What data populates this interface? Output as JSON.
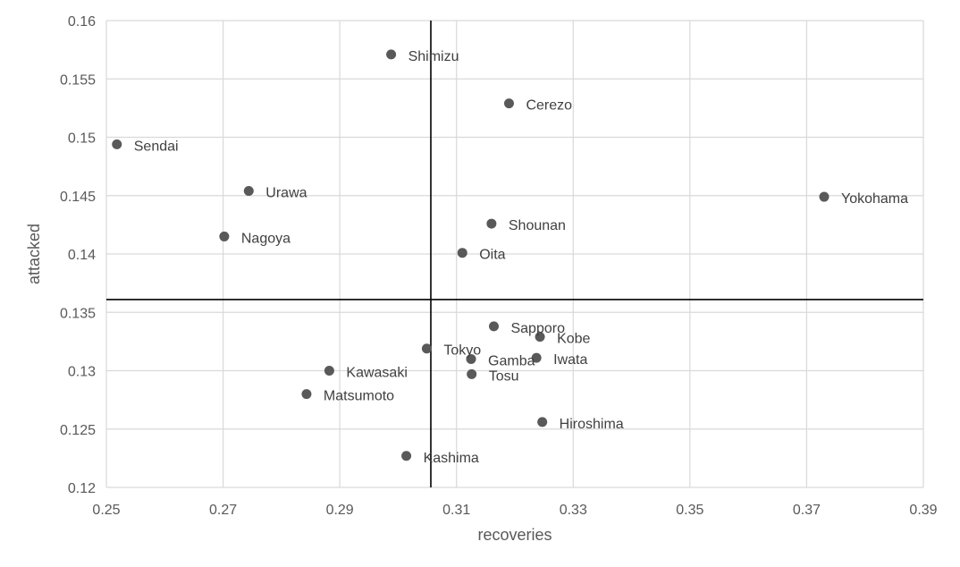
{
  "chart_data": {
    "type": "scatter",
    "title": "",
    "xlabel": "recoveries",
    "ylabel": "attacked",
    "xlim": [
      0.25,
      0.39
    ],
    "ylim": [
      0.12,
      0.16
    ],
    "xticks": [
      "0.25",
      "0.27",
      "0.29",
      "0.31",
      "0.33",
      "0.35",
      "0.37",
      "0.39"
    ],
    "yticks": [
      "0.12",
      "0.125",
      "0.13",
      "0.135",
      "0.14",
      "0.145",
      "0.15",
      "0.155",
      "0.16"
    ],
    "grid": true,
    "legend": "none",
    "point_color": "#595959",
    "reference_lines": {
      "x": 0.3056,
      "y": 0.1361
    },
    "points": [
      {
        "label": "Shimizu",
        "x": 0.2988,
        "y": 0.1571
      },
      {
        "label": "Cerezo",
        "x": 0.319,
        "y": 0.1529
      },
      {
        "label": "Sendai",
        "x": 0.2518,
        "y": 0.1494
      },
      {
        "label": "Urawa",
        "x": 0.2744,
        "y": 0.1454
      },
      {
        "label": "Yokohama",
        "x": 0.373,
        "y": 0.1449
      },
      {
        "label": "Shounan",
        "x": 0.316,
        "y": 0.1426
      },
      {
        "label": "Nagoya",
        "x": 0.2702,
        "y": 0.1415
      },
      {
        "label": "Oita",
        "x": 0.311,
        "y": 0.1401
      },
      {
        "label": "Sapporo",
        "x": 0.3164,
        "y": 0.1338
      },
      {
        "label": "Kobe",
        "x": 0.3243,
        "y": 0.1329
      },
      {
        "label": "Tokyo",
        "x": 0.3049,
        "y": 0.1319
      },
      {
        "label": "Gamba",
        "x": 0.3125,
        "y": 0.131
      },
      {
        "label": "Iwata",
        "x": 0.3237,
        "y": 0.1311
      },
      {
        "label": "Kawasaki",
        "x": 0.2882,
        "y": 0.13
      },
      {
        "label": "Tosu",
        "x": 0.3126,
        "y": 0.1297
      },
      {
        "label": "Matsumoto",
        "x": 0.2843,
        "y": 0.128
      },
      {
        "label": "Hiroshima",
        "x": 0.3247,
        "y": 0.1256
      },
      {
        "label": "Kashima",
        "x": 0.3014,
        "y": 0.1227
      }
    ]
  }
}
